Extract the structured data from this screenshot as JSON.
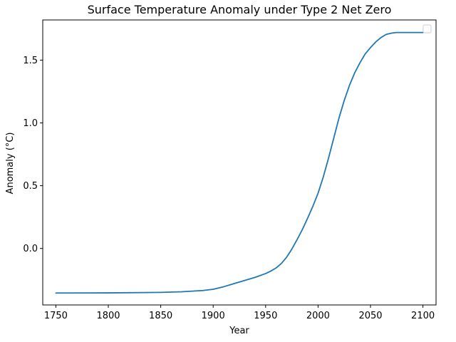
{
  "chart_data": {
    "type": "line",
    "title": "Surface Temperature Anomaly under Type 2 Net Zero",
    "xlabel": "Year",
    "ylabel": "Anomaly (°C)",
    "xlim": [
      1737.5,
      2112.5
    ],
    "ylim": [
      -0.45,
      1.82
    ],
    "xticks": [
      1750,
      1800,
      1850,
      1900,
      1950,
      2000,
      2050,
      2100
    ],
    "yticks": [
      0.0,
      0.5,
      1.0,
      1.5
    ],
    "ytick_labels": [
      "0.0",
      "0.5",
      "1.0",
      "1.5"
    ],
    "grid": false,
    "legend": {
      "placement": "top-right",
      "entries": []
    },
    "series": [
      {
        "color": "#1f77b4",
        "x": [
          1750,
          1800,
          1850,
          1870,
          1890,
          1900,
          1910,
          1920,
          1930,
          1940,
          1950,
          1955,
          1960,
          1965,
          1970,
          1975,
          1980,
          1985,
          1990,
          1995,
          2000,
          2005,
          2010,
          2015,
          2020,
          2025,
          2030,
          2035,
          2040,
          2045,
          2050,
          2055,
          2060,
          2065,
          2070,
          2075,
          2080,
          2090,
          2100
        ],
        "y": [
          -0.355,
          -0.354,
          -0.35,
          -0.345,
          -0.335,
          -0.325,
          -0.305,
          -0.28,
          -0.255,
          -0.23,
          -0.2,
          -0.18,
          -0.155,
          -0.12,
          -0.07,
          -0.005,
          0.07,
          0.15,
          0.24,
          0.335,
          0.44,
          0.57,
          0.72,
          0.88,
          1.04,
          1.18,
          1.3,
          1.4,
          1.48,
          1.55,
          1.6,
          1.645,
          1.68,
          1.705,
          1.715,
          1.72,
          1.72,
          1.72,
          1.72
        ]
      }
    ]
  }
}
